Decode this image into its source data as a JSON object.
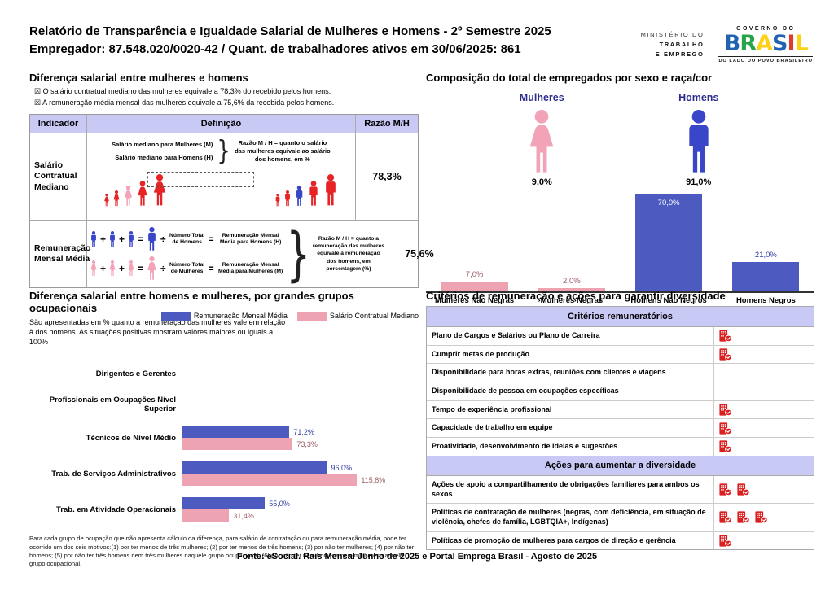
{
  "header": {
    "title_line1": "Relatório de Transparência e Igualdade Salarial de Mulheres e Homens - 2º Semestre 2025",
    "title_line2": "Empregador: 87.548.020/0020-42 / Quant. de trabalhadores ativos em 30/06/2025: 861",
    "ministry": {
      "line1": "MINISTÉRIO DO",
      "line2": "TRABALHO",
      "line3": "E EMPREGO"
    },
    "gov": {
      "top": "GOVERNO DO",
      "word": "BRASIL",
      "bottom": "DO LADO DO POVO BRASILEIRO"
    }
  },
  "salary_gap": {
    "title": "Diferença salarial entre mulheres e homens",
    "bullets": [
      {
        "glyph": "☒",
        "text": "O salário contratual mediano das mulheres equivale a 78,3% do recebido pelos homens."
      },
      {
        "glyph": "☒",
        "text": "A remuneração média mensal das mulheres equivale a 75,6% da recebida pelos homens."
      }
    ],
    "table": {
      "headers": [
        "Indicador",
        "Definição",
        "Razão M/H"
      ],
      "row1": {
        "indicator": "Salário Contratual Mediano",
        "line_women": "Salário mediano para Mulheres (M)",
        "line_men": "Salário mediano para Homens (H)",
        "razao_text": "Razão M / H = quanto o salário das mulheres equivale ao salário dos homens, em %",
        "ratio": "78,3%"
      },
      "row2": {
        "indicator": "Remuneração Mensal Média",
        "men_total": "Número Total de Homens",
        "men_result": "Remuneração Mensal Média para Homens (H)",
        "women_total": "Número Total de Mulheres",
        "women_result": "Remuneração Mensal Média para Mulheres (M)",
        "razao_text": "Razão M / H = quanto a remuneração das mulheres equivale à remuneração dos homens, em porcentagem (%)",
        "ratio": "75,6%"
      }
    }
  },
  "composition": {
    "title": "Composição do total de empregados por sexo e raça/cor",
    "women": {
      "label": "Mulheres",
      "pct": "9,0%"
    },
    "men": {
      "label": "Homens",
      "pct": "91,0%"
    }
  },
  "occupational": {
    "title": "Diferença salarial entre homens e mulheres, por grandes grupos ocupacionais",
    "subtitle": "São apresentadas em % quanto a remuneração das mulheres vale em relação à dos homens. As situações positivas mostram valores maiores ou iguais a 100%",
    "note": "Para cada grupo de ocupação que não apresenta cálculo da diferença, para salário de contratação ou para remuneração média, pode ter ocorrido um dos seis motivos:(1) por ter menos de três mulheres; (2) por ter menos de três homens; (3) por não ter mulheres; (4) por não ter homens; (5) por não ter três homens nem três mulheres naquele grupo ocupacional; (6) por não ter nem homens nem mulheres naquele grupo ocupacional."
  },
  "criteria": {
    "title": "Critérios de remuneração e ações para garantir diversidade",
    "head_criterios": "Critérios remuneratórios",
    "head_acoes": "Ações para aumentar a diversidade",
    "criterios": [
      {
        "label": "Plano de Cargos e Salários ou Plano de Carreira",
        "marks": 1
      },
      {
        "label": "Cumprir metas de produção",
        "marks": 1
      },
      {
        "label": "Disponibilidade para horas extras, reuniões com clientes e viagens",
        "marks": 0
      },
      {
        "label": "Disponibilidade de pessoa em ocupações específicas",
        "marks": 0
      },
      {
        "label": "Tempo de experiência profissional",
        "marks": 1
      },
      {
        "label": "Capacidade de trabalho em equipe",
        "marks": 1
      },
      {
        "label": "Proatividade, desenvolvimento de ideias e sugestões",
        "marks": 1
      }
    ],
    "acoes": [
      {
        "label": "Ações de apoio a compartilhamento de obrigações familiares para ambos os sexos",
        "marks": 2
      },
      {
        "label": "Políticas de contratação de mulheres (negras, com deficiência, em situação de violência, chefes de família, LGBTQIA+, Indígenas)",
        "marks": 3
      },
      {
        "label": "Políticas de promoção de mulheres para cargos de direção e gerência",
        "marks": 1
      }
    ]
  },
  "chart_data": [
    {
      "type": "bar",
      "title": "Composição do total de empregados por sexo e raça/cor",
      "categories": [
        "Mulheres Não Negras",
        "Mulheres Negras",
        "Homens Não Negros",
        "Homens Negros"
      ],
      "values": [
        7.0,
        2.0,
        70.0,
        21.0
      ],
      "value_labels": [
        "7,0%",
        "2,0%",
        "70,0%",
        "21,0%"
      ],
      "bar_colors": [
        "pink",
        "pink",
        "blue",
        "blue"
      ],
      "label_inside": [
        false,
        false,
        true,
        false
      ],
      "ylim": [
        0,
        100
      ],
      "grid": false,
      "colors": {
        "pink": "#eda3b2",
        "blue": "#4d5bc0"
      }
    },
    {
      "type": "bar",
      "orientation": "horizontal",
      "title": "Diferença salarial entre homens e mulheres, por grandes grupos ocupacionais",
      "categories": [
        "Dirigentes e Gerentes",
        "Profissionais em Ocupações Nível Superior",
        "Técnicos de Nível Médio",
        "Trab. de Serviços Administrativos",
        "Trab. em Atividade Operacionais"
      ],
      "series": [
        {
          "name": "Remuneração Mensal Média",
          "color_key": "blue",
          "values": [
            null,
            null,
            71.2,
            96.0,
            55.0
          ],
          "value_labels": [
            "",
            "",
            "71,2%",
            "96,0%",
            "55,0%"
          ]
        },
        {
          "name": "Salário Contratual Mediano",
          "color_key": "pink",
          "values": [
            null,
            null,
            73.3,
            115.8,
            31.4
          ],
          "value_labels": [
            "",
            "",
            "73,3%",
            "115,8%",
            "31,4%"
          ]
        }
      ],
      "xlim": [
        0,
        130
      ],
      "grid": false,
      "legend_position": "top-right"
    }
  ],
  "footer": {
    "source": "Fonte: eSocial. Rais Mensal Junho de 2025 e Portal Emprega Brasil - Agosto de 2025"
  }
}
